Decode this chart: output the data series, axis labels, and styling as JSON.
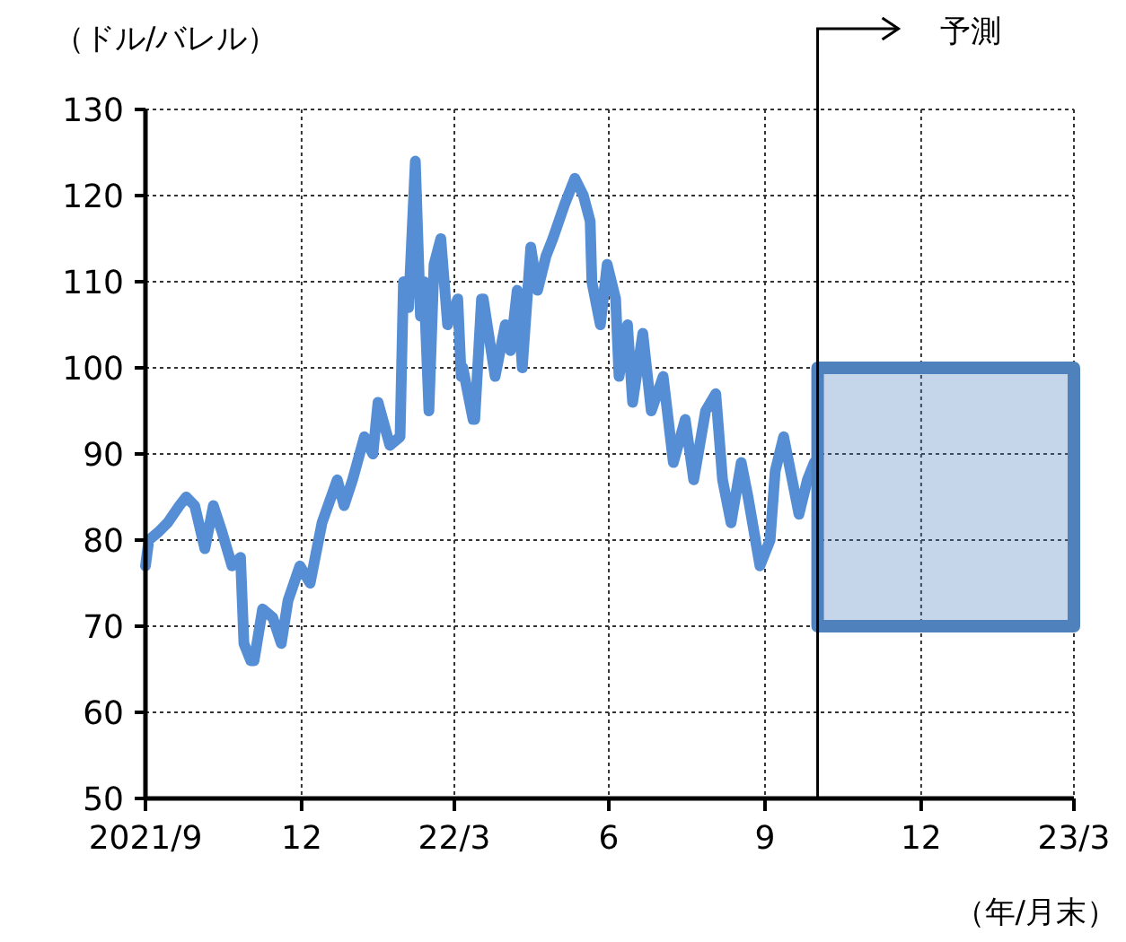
{
  "chart_data": {
    "type": "line",
    "ylabel": "（ドル/バレル）",
    "xlabel": "（年/月末）",
    "xlim": [
      "2021-09-30",
      "2023-03-31"
    ],
    "xticks": [
      {
        "value": "2021-09-30",
        "label": "2021/9"
      },
      {
        "value": "2021-12-31",
        "label": "12"
      },
      {
        "value": "2022-03-31",
        "label": "22/3"
      },
      {
        "value": "2022-06-30",
        "label": "6"
      },
      {
        "value": "2022-09-30",
        "label": "9"
      },
      {
        "value": "2022-12-31",
        "label": "12"
      },
      {
        "value": "2023-03-31",
        "label": "23/3"
      }
    ],
    "ylim": [
      50,
      130
    ],
    "yticks": [
      50,
      60,
      70,
      80,
      90,
      100,
      110,
      120,
      130
    ],
    "grid": true,
    "line_style": "solid",
    "marker": "none",
    "ref_lines": [
      {
        "axis": "x",
        "value": "2022-10-31",
        "label": "予測",
        "color": "#000000"
      }
    ],
    "bands": [
      {
        "axis": "y",
        "from": 70,
        "to": 100,
        "color": "#4f81bd"
      }
    ],
    "series": [
      {
        "color": "#558ed5",
        "x": [
          "2021-09-30",
          "2021-10-02",
          "2021-10-08",
          "2021-10-13",
          "2021-10-20",
          "2021-10-24",
          "2021-10-29",
          "2021-11-04",
          "2021-11-09",
          "2021-11-14",
          "2021-11-20",
          "2021-11-25",
          "2021-11-27",
          "2021-12-01",
          "2021-12-03",
          "2021-12-08",
          "2021-12-14",
          "2021-12-19",
          "2021-12-23",
          "2021-12-30",
          "2022-01-05",
          "2022-01-12",
          "2022-01-21",
          "2022-01-25",
          "2022-01-30",
          "2022-02-06",
          "2022-02-11",
          "2022-02-14",
          "2022-02-21",
          "2022-02-27",
          "2022-03-01",
          "2022-03-04",
          "2022-03-08",
          "2022-03-11",
          "2022-03-13",
          "2022-03-16",
          "2022-03-19",
          "2022-03-23",
          "2022-03-27",
          "2022-04-02",
          "2022-04-04",
          "2022-04-05",
          "2022-04-11",
          "2022-04-12",
          "2022-04-16",
          "2022-04-17",
          "2022-04-24",
          "2022-04-30",
          "2022-05-03",
          "2022-05-07",
          "2022-05-10",
          "2022-05-15",
          "2022-05-19",
          "2022-05-24",
          "2022-05-28",
          "2022-06-04",
          "2022-06-10",
          "2022-06-15",
          "2022-06-19",
          "2022-06-20",
          "2022-06-25",
          "2022-06-29",
          "2022-07-04",
          "2022-07-06",
          "2022-07-11",
          "2022-07-14",
          "2022-07-20",
          "2022-07-25",
          "2022-08-01",
          "2022-08-07",
          "2022-08-14",
          "2022-08-19",
          "2022-08-26",
          "2022-09-01",
          "2022-09-05",
          "2022-09-10",
          "2022-09-16",
          "2022-09-20",
          "2022-09-27",
          "2022-10-03",
          "2022-10-06",
          "2022-10-11",
          "2022-10-15",
          "2022-10-20",
          "2022-10-25",
          "2022-10-29"
        ],
        "values": [
          77,
          80,
          81,
          82,
          84,
          85,
          84,
          79,
          84,
          81,
          77,
          78,
          68,
          66,
          66,
          72,
          71,
          68,
          73,
          77,
          75,
          82,
          87,
          84,
          87,
          92,
          90,
          96,
          91,
          92,
          110,
          107,
          124,
          106,
          110,
          95,
          112,
          115,
          105,
          108,
          99,
          100,
          94,
          94,
          108,
          108,
          99,
          105,
          102,
          109,
          100,
          114,
          109,
          113,
          115,
          119,
          122,
          120,
          117,
          110,
          105,
          112,
          108,
          99,
          105,
          96,
          104,
          95,
          99,
          89,
          94,
          87,
          95,
          97,
          87,
          82,
          89,
          85,
          77,
          80,
          88,
          92,
          88,
          83,
          87,
          89
        ]
      }
    ]
  }
}
